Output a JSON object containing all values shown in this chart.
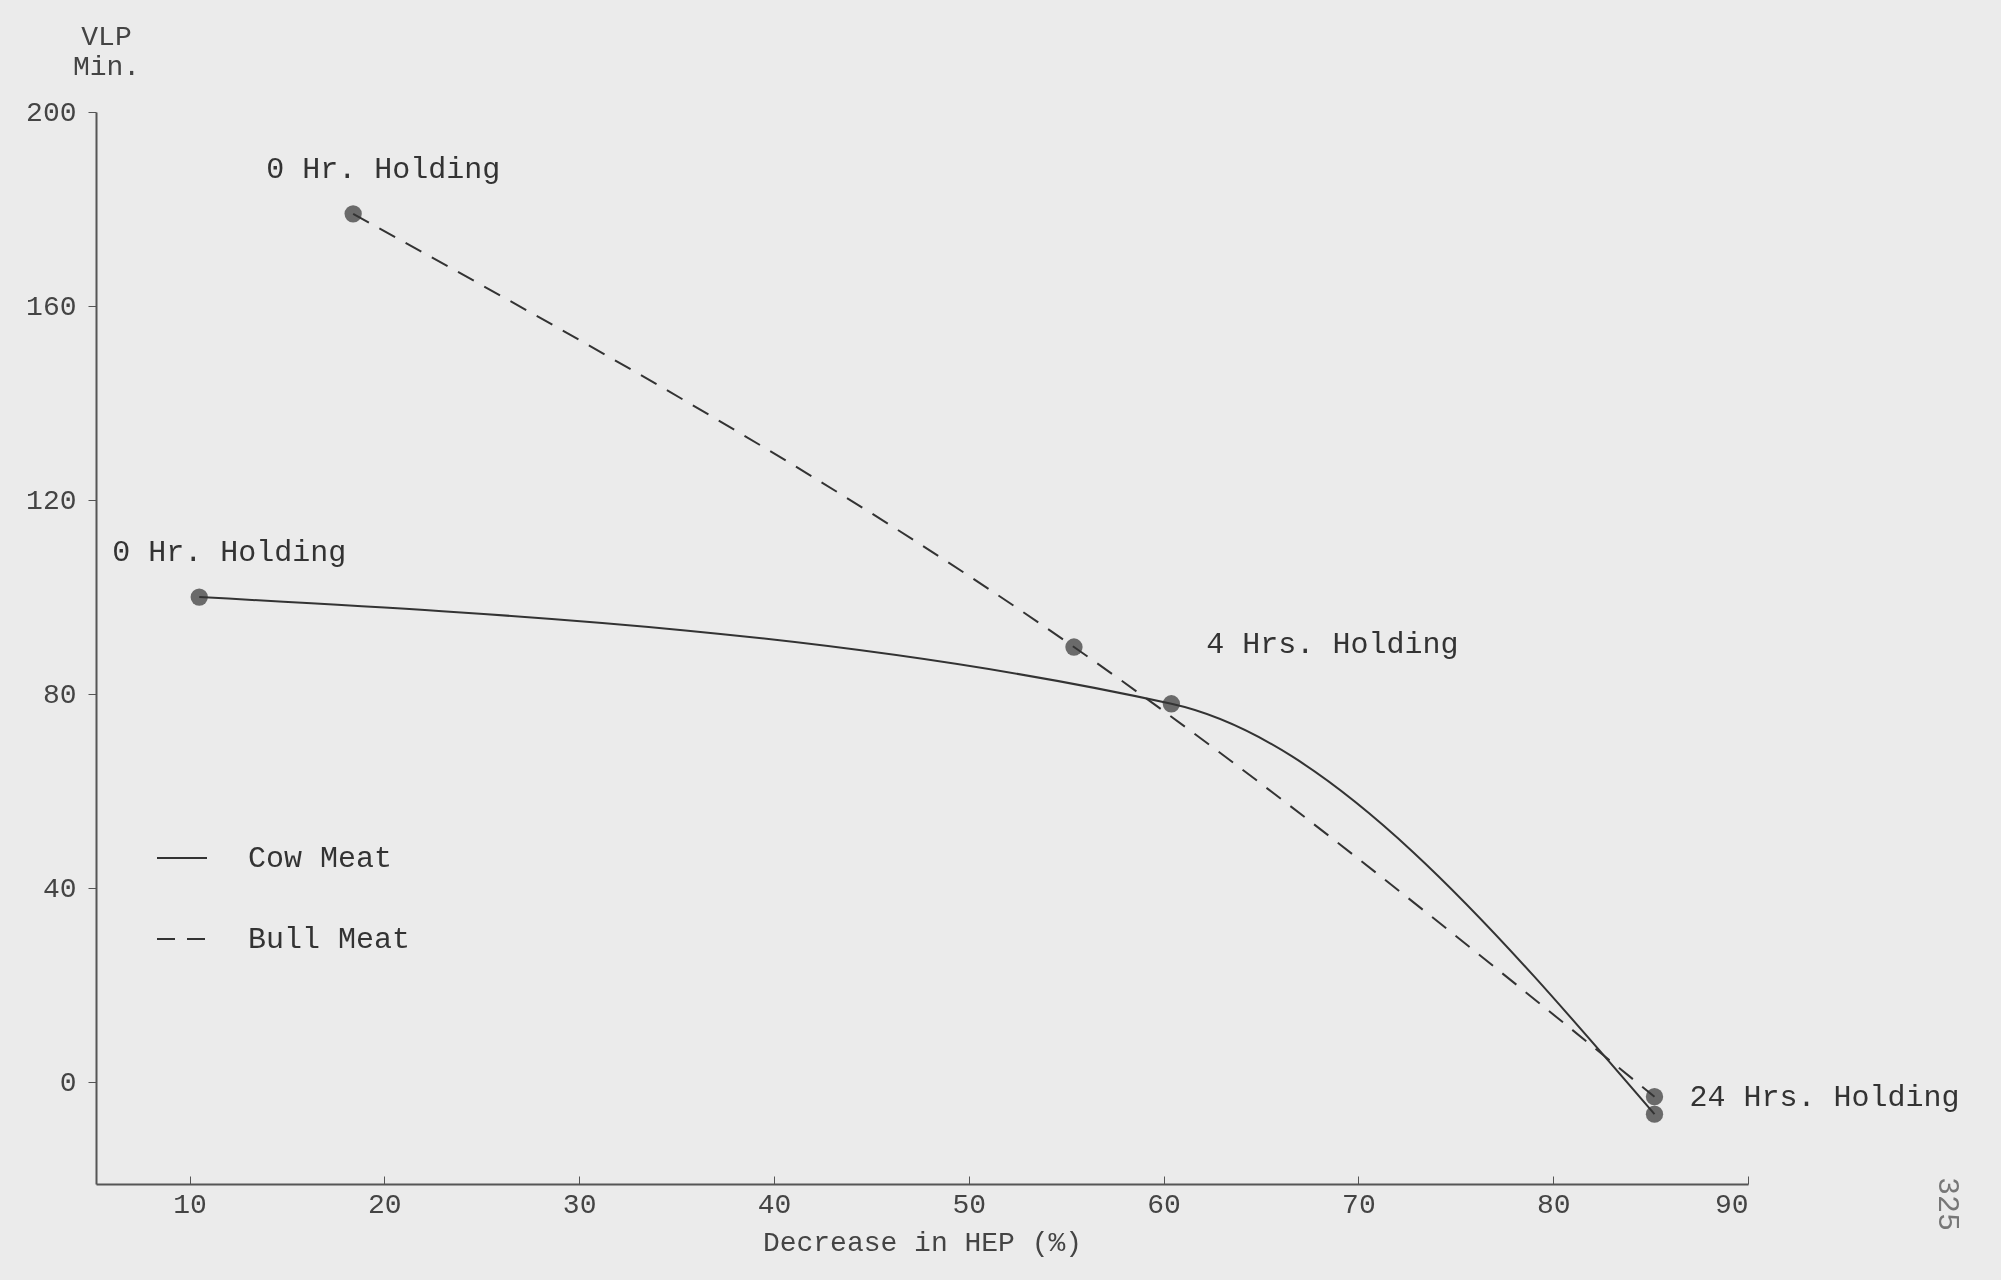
{
  "chart_data": {
    "type": "line",
    "xlabel": "Decrease in HEP (%)",
    "ylabel": "VLP Min.",
    "xlim": [
      5.2,
      90
    ],
    "xticks": [
      10,
      20,
      30,
      40,
      50,
      60,
      70,
      80,
      90
    ],
    "ylim": [
      -21,
      200
    ],
    "yticks": [
      0,
      40,
      80,
      120,
      160,
      200
    ],
    "series": [
      {
        "name": "Cow Meat",
        "color": "#333333",
        "line_style": "solid",
        "x": [
          10.5,
          60.4,
          85.2
        ],
        "values": [
          100,
          78,
          -6.6
        ]
      },
      {
        "name": "Bull Meat",
        "color": "#333333",
        "line_style": "dashed",
        "x": [
          18.4,
          55.4,
          85.2
        ],
        "values": [
          179,
          89.7,
          -3
        ]
      }
    ],
    "marker": "circle",
    "grid": false,
    "legend": "bottom left",
    "annotations": [
      {
        "text": "0 Hr. Holding",
        "x": 18.4,
        "y": 179
      },
      {
        "text": "0 Hr. Holding",
        "x": 10.5,
        "y": 100
      },
      {
        "text": "4 Hrs. Holding",
        "x": 60.4,
        "y": 78
      },
      {
        "text": "24 Hrs. Holding",
        "x": 85.2,
        "y": -3
      },
      "325"
    ]
  }
}
